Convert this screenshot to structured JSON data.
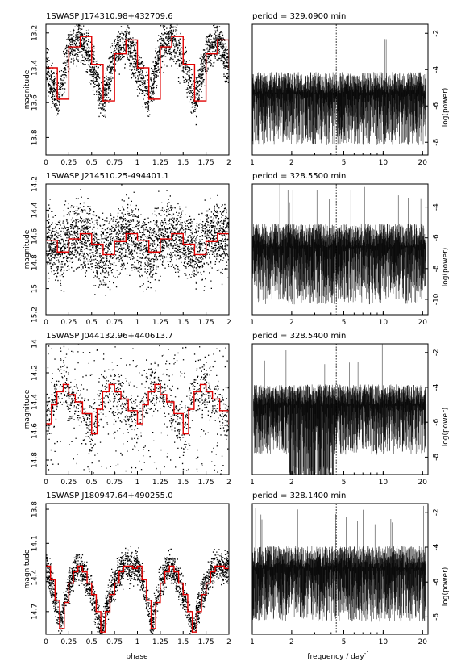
{
  "chart_data": [
    {
      "type": "scatter",
      "title": "1SWASP J174310.98+432709.6",
      "xlabel": "",
      "ylabel": "magnitude",
      "xlim": [
        0,
        2
      ],
      "ylim": [
        13.9,
        13.15
      ],
      "inverted_y": true,
      "x_ticks": [
        "0",
        "0.25",
        "0.5",
        "0.75",
        "1",
        "1.25",
        "1.5",
        "1.75",
        "2"
      ],
      "y_ticks": [
        "13.2",
        "13.4",
        "13.6",
        "13.8"
      ],
      "series": [
        {
          "color": "#e00000",
          "x": [
            0.0,
            0.125,
            0.25,
            0.375,
            0.5,
            0.625,
            0.75,
            0.875,
            1.0,
            1.125,
            1.25,
            1.375,
            1.5,
            1.625,
            1.75,
            1.875,
            2.0
          ],
          "y": [
            13.4,
            13.58,
            13.28,
            13.22,
            13.38,
            13.59,
            13.32,
            13.24,
            13.4,
            13.58,
            13.28,
            13.22,
            13.38,
            13.59,
            13.32,
            13.24,
            13.4
          ]
        }
      ]
    },
    {
      "type": "line",
      "title": "period = 329.0900 min",
      "xlabel": "",
      "ylabel": "log(power)",
      "x_scale": "log",
      "xlim": [
        1,
        22
      ],
      "ylim": [
        -8.7,
        -1.5
      ],
      "x_ticks": [
        "1",
        "2",
        "5",
        "10",
        "20"
      ],
      "y_ticks": [
        "-2",
        "-4",
        "-6",
        "-8"
      ],
      "marker_frequency": 4.38
    },
    {
      "type": "scatter",
      "title": "1SWASP J214510.25-494401.1",
      "xlabel": "",
      "ylabel": "magnitude",
      "xlim": [
        0,
        2
      ],
      "ylim": [
        15.2,
        14.2
      ],
      "inverted_y": true,
      "x_ticks": [
        "0",
        "0.25",
        "0.5",
        "0.75",
        "1",
        "1.25",
        "1.5",
        "1.75",
        "2"
      ],
      "y_ticks": [
        "14.2",
        "14.4",
        "14.6",
        "14.8",
        "15",
        "15.2"
      ],
      "series": [
        {
          "color": "#e00000",
          "x": [
            0.0,
            0.125,
            0.25,
            0.375,
            0.5,
            0.625,
            0.75,
            0.875,
            1.0,
            1.125,
            1.25,
            1.375,
            1.5,
            1.625,
            1.75,
            1.875,
            2.0
          ],
          "y": [
            14.63,
            14.72,
            14.62,
            14.58,
            14.66,
            14.74,
            14.64,
            14.58,
            14.63,
            14.72,
            14.62,
            14.58,
            14.66,
            14.74,
            14.64,
            14.58,
            14.63
          ]
        }
      ]
    },
    {
      "type": "line",
      "title": "period = 328.5500 min",
      "xlabel": "",
      "ylabel": "log(power)",
      "x_scale": "log",
      "xlim": [
        1,
        22
      ],
      "ylim": [
        -11,
        -2.5
      ],
      "x_ticks": [
        "1",
        "2",
        "5",
        "10",
        "20"
      ],
      "y_ticks": [
        "-4",
        "-6",
        "-8",
        "-10"
      ],
      "marker_frequency": 4.38
    },
    {
      "type": "scatter",
      "title": "1SWASP J044132.96+440613.7",
      "xlabel": "",
      "ylabel": "magnitude",
      "xlim": [
        0,
        2
      ],
      "ylim": [
        14.9,
        14.0
      ],
      "inverted_y": true,
      "x_ticks": [
        "0",
        "0.25",
        "0.5",
        "0.75",
        "1",
        "1.25",
        "1.5",
        "1.75",
        "2"
      ],
      "y_ticks": [
        "14",
        "14.2",
        "14.4",
        "14.6",
        "14.8"
      ],
      "series": [
        {
          "color": "#e00000",
          "x": [
            0.0,
            0.06,
            0.12,
            0.19,
            0.25,
            0.32,
            0.4,
            0.5,
            0.56,
            0.62,
            0.69,
            0.75,
            0.82,
            0.9,
            1.0,
            1.06,
            1.12,
            1.19,
            1.25,
            1.32,
            1.4,
            1.5,
            1.56,
            1.62,
            1.69,
            1.75,
            1.82,
            1.9,
            2.0
          ],
          "y": [
            14.55,
            14.42,
            14.33,
            14.28,
            14.35,
            14.4,
            14.48,
            14.62,
            14.45,
            14.33,
            14.28,
            14.33,
            14.38,
            14.46,
            14.55,
            14.42,
            14.33,
            14.28,
            14.35,
            14.4,
            14.48,
            14.62,
            14.45,
            14.33,
            14.28,
            14.33,
            14.38,
            14.46,
            14.55
          ]
        }
      ]
    },
    {
      "type": "line",
      "title": "period = 328.5400 min",
      "xlabel": "",
      "ylabel": "log(power)",
      "x_scale": "log",
      "xlim": [
        1,
        22
      ],
      "ylim": [
        -9,
        -1.5
      ],
      "x_ticks": [
        "1",
        "2",
        "5",
        "10",
        "20"
      ],
      "y_ticks": [
        "-2",
        "-4",
        "-6",
        "-8"
      ],
      "marker_frequency": 4.38
    },
    {
      "type": "scatter",
      "title": "1SWASP J180947.64+490255.0",
      "xlabel": "phase",
      "ylabel": "magnitude",
      "xlim": [
        0,
        2
      ],
      "ylim": [
        14.9,
        13.75
      ],
      "inverted_y": true,
      "x_ticks": [
        "0",
        "0.25",
        "0.5",
        "0.75",
        "1",
        "1.25",
        "1.5",
        "1.75",
        "2"
      ],
      "y_ticks": [
        "13.8",
        "14.1",
        "14.4",
        "14.7"
      ],
      "series": [
        {
          "color": "#e00000",
          "x": [
            0.0,
            0.05,
            0.1,
            0.15,
            0.2,
            0.25,
            0.3,
            0.35,
            0.4,
            0.45,
            0.5,
            0.55,
            0.6,
            0.65,
            0.7,
            0.75,
            0.8,
            0.85,
            0.9,
            0.95,
            1.0,
            1.05,
            1.1,
            1.15,
            1.2,
            1.25,
            1.3,
            1.35,
            1.4,
            1.45,
            1.5,
            1.55,
            1.6,
            1.65,
            1.7,
            1.75,
            1.8,
            1.85,
            1.9,
            1.95,
            2.0
          ],
          "y": [
            14.3,
            14.42,
            14.6,
            14.85,
            14.62,
            14.45,
            14.35,
            14.3,
            14.35,
            14.45,
            14.55,
            14.7,
            14.88,
            14.7,
            14.55,
            14.45,
            14.35,
            14.3,
            14.3,
            14.32,
            14.3,
            14.42,
            14.6,
            14.85,
            14.62,
            14.45,
            14.35,
            14.3,
            14.35,
            14.45,
            14.55,
            14.7,
            14.88,
            14.7,
            14.55,
            14.45,
            14.35,
            14.3,
            14.3,
            14.32,
            14.3
          ]
        }
      ]
    },
    {
      "type": "line",
      "title": "period = 328.1400 min",
      "xlabel": "frequency / day",
      "xlabel_superscript": "-1",
      "ylabel": "log(power)",
      "x_scale": "log",
      "xlim": [
        1,
        22
      ],
      "ylim": [
        -9,
        -1.5
      ],
      "x_ticks": [
        "1",
        "2",
        "5",
        "10",
        "20"
      ],
      "y_ticks": [
        "-2",
        "-4",
        "-6",
        "-8"
      ],
      "marker_frequency": 4.38
    }
  ]
}
